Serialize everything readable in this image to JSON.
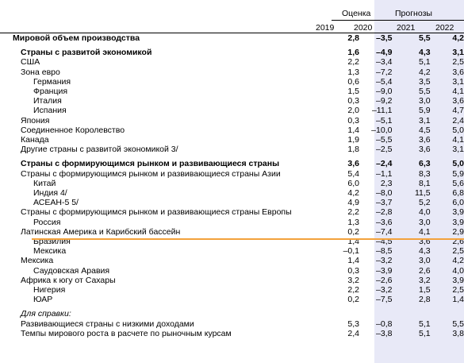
{
  "header": {
    "estimate_label": "Оценка",
    "forecast_label": "Прогнозы",
    "years": [
      "2019",
      "2020",
      "2021",
      "2022"
    ]
  },
  "rows": [
    {
      "label": "Мировой объем производства",
      "v": [
        "2,8",
        "–3,5",
        "5,5",
        "4,2"
      ],
      "bold": true,
      "indent": 0
    },
    {
      "spacer": true
    },
    {
      "label": "Страны с развитой экономикой",
      "v": [
        "1,6",
        "–4,9",
        "4,3",
        "3,1"
      ],
      "bold": true,
      "indent": 1
    },
    {
      "label": "США",
      "v": [
        "2,2",
        "–3,4",
        "5,1",
        "2,5"
      ],
      "indent": 1
    },
    {
      "label": "Зона евро",
      "v": [
        "1,3",
        "–7,2",
        "4,2",
        "3,6"
      ],
      "indent": 1
    },
    {
      "label": "Германия",
      "v": [
        "0,6",
        "–5,4",
        "3,5",
        "3,1"
      ],
      "indent": 3
    },
    {
      "label": "Франция",
      "v": [
        "1,5",
        "–9,0",
        "5,5",
        "4,1"
      ],
      "indent": 3
    },
    {
      "label": "Италия",
      "v": [
        "0,3",
        "–9,2",
        "3,0",
        "3,6"
      ],
      "indent": 3
    },
    {
      "label": "Испания",
      "v": [
        "2,0",
        "–11,1",
        "5,9",
        "4,7"
      ],
      "indent": 3
    },
    {
      "label": "Япония",
      "v": [
        "0,3",
        "–5,1",
        "3,1",
        "2,4"
      ],
      "indent": 1
    },
    {
      "label": "Соединенное Королевство",
      "v": [
        "1,4",
        "–10,0",
        "4,5",
        "5,0"
      ],
      "indent": 1
    },
    {
      "label": "Канада",
      "v": [
        "1,9",
        "–5,5",
        "3,6",
        "4,1"
      ],
      "indent": 1
    },
    {
      "label": "Другие страны с развитой экономикой 3/",
      "v": [
        "1,8",
        "–2,5",
        "3,6",
        "3,1"
      ],
      "indent": 1
    },
    {
      "spacer": true
    },
    {
      "label": "Страны с формирующимся рынком и развивающиеся страны",
      "v": [
        "3,6",
        "–2,4",
        "6,3",
        "5,0"
      ],
      "bold": true,
      "indent": 1
    },
    {
      "label": "Страны с формирующимся рынком и развивающиеся страны Азии",
      "v": [
        "5,4",
        "–1,1",
        "8,3",
        "5,9"
      ],
      "indent": 1
    },
    {
      "label": "Китай",
      "v": [
        "6,0",
        "2,3",
        "8,1",
        "5,6"
      ],
      "indent": 3
    },
    {
      "label": "Индия 4/",
      "v": [
        "4,2",
        "–8,0",
        "11,5",
        "6,8"
      ],
      "indent": 3
    },
    {
      "label": "АСЕАН-5 5/",
      "v": [
        "4,9",
        "–3,7",
        "5,2",
        "6,0"
      ],
      "indent": 3
    },
    {
      "label": "Страны с формирующимся рынком и развивающиеся страны Европы",
      "v": [
        "2,2",
        "–2,8",
        "4,0",
        "3,9"
      ],
      "indent": 1
    },
    {
      "label": "Россия",
      "v": [
        "1,3",
        "–3,6",
        "3,0",
        "3,9"
      ],
      "indent": 3
    },
    {
      "label": "Латинская Америка и Карибский бассейн",
      "v": [
        "0,2",
        "–7,4",
        "4,1",
        "2,9"
      ],
      "indent": 1
    },
    {
      "label": "Бразилия",
      "v": [
        "1,4",
        "–4,5",
        "3,6",
        "2,6"
      ],
      "indent": 3
    },
    {
      "label": "Мексика",
      "v": [
        "–0,1",
        "–8,5",
        "4,3",
        "2,5"
      ],
      "indent": 3
    },
    {
      "label": "Мексика",
      "v": [
        "1,4",
        "–3,2",
        "3,0",
        "4,2"
      ],
      "indent": 1
    },
    {
      "label": "Саудовская Аравия",
      "v": [
        "0,3",
        "–3,9",
        "2,6",
        "4,0"
      ],
      "indent": 3
    },
    {
      "label": "Африка к югу от Сахары",
      "v": [
        "3,2",
        "–2,6",
        "3,2",
        "3,9"
      ],
      "indent": 1
    },
    {
      "label": "Нигерия",
      "v": [
        "2,2",
        "–3,2",
        "1,5",
        "2,5"
      ],
      "indent": 3
    },
    {
      "label": "ЮАР",
      "v": [
        "0,2",
        "–7,5",
        "2,8",
        "1,4"
      ],
      "indent": 3
    },
    {
      "spacer": true
    },
    {
      "label": "Для справки:",
      "v": [
        "",
        "",
        "",
        ""
      ],
      "note": true,
      "indent": 1
    },
    {
      "label": "Развивающиеся страны с низкими доходами",
      "v": [
        "5,3",
        "–0,8",
        "5,1",
        "5,5"
      ],
      "indent": 1
    },
    {
      "label": "Темпы мирового роста в расчете по рыночным курсам",
      "v": [
        "2,4",
        "–3,8",
        "5,1",
        "3,8"
      ],
      "indent": 1
    }
  ]
}
